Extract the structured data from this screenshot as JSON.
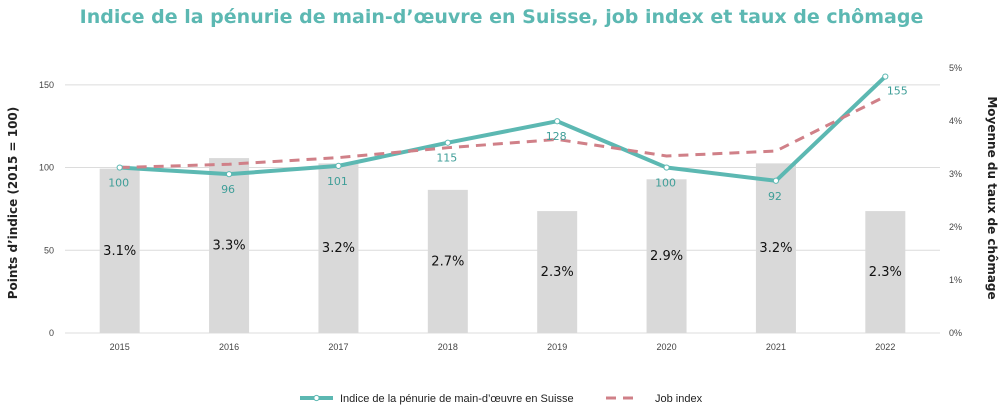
{
  "title": "Indice de la pénurie de main-d’œuvre en Suisse, job index et taux de chômage",
  "colors": {
    "title": "#5cb8b2",
    "line": "#5cb8b2",
    "dashed": "#d08088",
    "bar": "#d9d9d9",
    "grid": "#dcdcdc"
  },
  "chart_data": {
    "type": "bar+line",
    "categories": [
      "2015",
      "2016",
      "2017",
      "2018",
      "2019",
      "2020",
      "2021",
      "2022"
    ],
    "ylabel_left": "Points d’indice (2015 = 100)",
    "ylabel_right": "Moyenne du taux de chômage",
    "ylim_left": [
      0,
      165
    ],
    "yticks_left": [
      "0",
      "50",
      "100",
      "150"
    ],
    "ylim_right": [
      0,
      5.15
    ],
    "yticks_right": [
      "0%",
      "1%",
      "2%",
      "3%",
      "4%",
      "5%"
    ],
    "grid": true,
    "legend_position": "bottom",
    "bars": {
      "name": "Moyenne du taux de chômage",
      "values": [
        3.1,
        3.3,
        3.2,
        2.7,
        2.3,
        2.9,
        3.2,
        2.3
      ],
      "labels": [
        "3.1%",
        "3.3%",
        "3.2%",
        "2.7%",
        "2.3%",
        "2.9%",
        "3.2%",
        "2.3%"
      ]
    },
    "series": [
      {
        "name": "Indice de la pénurie de main-d’œuvre en Suisse",
        "style": "solid",
        "values": [
          100,
          96,
          101,
          115,
          128,
          100,
          92,
          155
        ],
        "labels": [
          "100",
          "96",
          "101",
          "115",
          "128",
          "100",
          "92",
          "155"
        ]
      },
      {
        "name": "Job index",
        "style": "dashed",
        "values": [
          100,
          102,
          106,
          112,
          117,
          107,
          110,
          143
        ]
      }
    ]
  }
}
